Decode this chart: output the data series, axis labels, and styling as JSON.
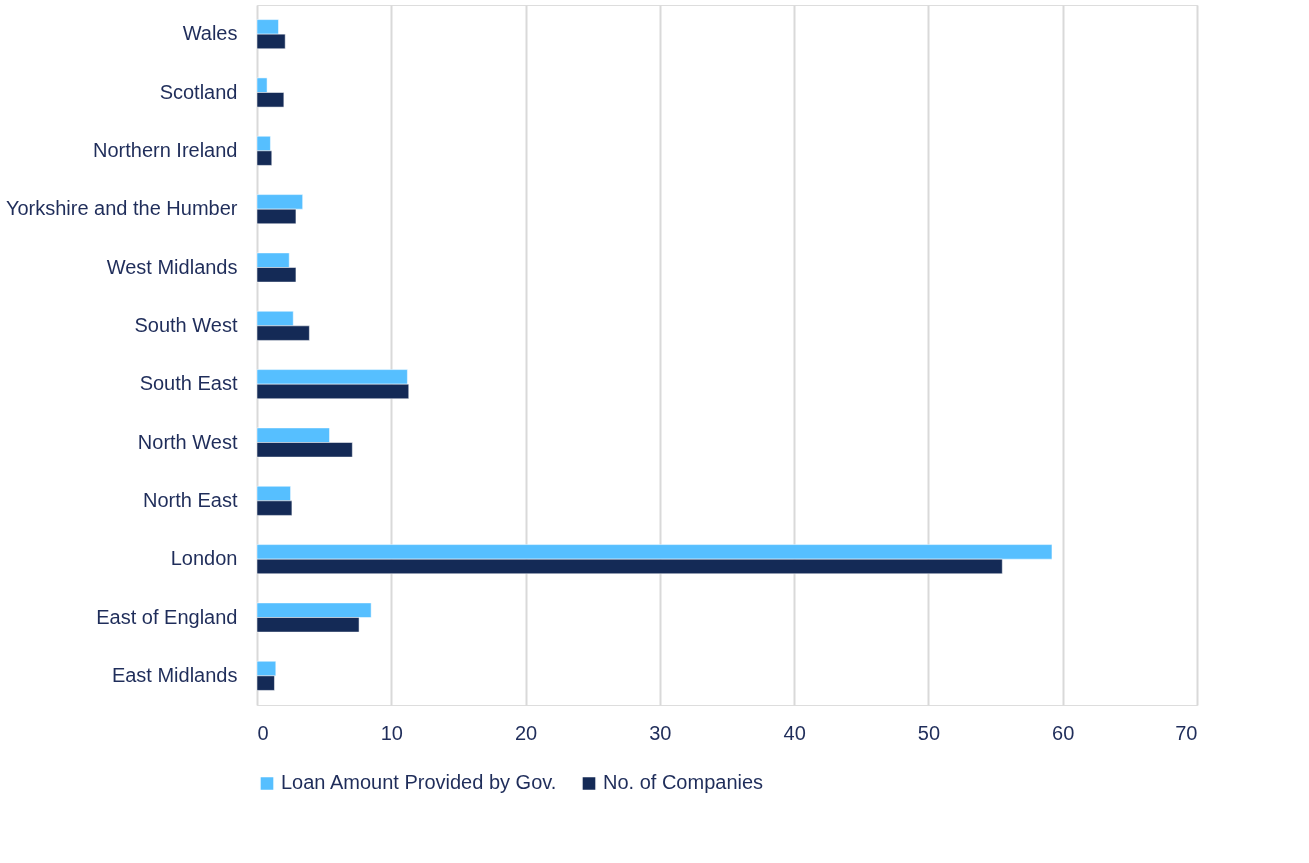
{
  "chart_data": {
    "type": "bar",
    "orientation": "horizontal",
    "categories": [
      "Wales",
      "Scotland",
      "Northern Ireland",
      "Yorkshire and the Humber",
      "West Midlands",
      "South West",
      "South East",
      "North West",
      "North East",
      "London",
      "East of England",
      "East Midlands"
    ],
    "series": [
      {
        "name": "Loan Amount Provided by Gov.",
        "color": "#56bfff",
        "values": [
          1.6,
          0.75,
          1.0,
          3.4,
          2.4,
          2.7,
          11.2,
          5.4,
          2.5,
          59.2,
          8.5,
          1.4
        ]
      },
      {
        "name": "No. of Companies",
        "color": "#142a56",
        "values": [
          2.1,
          2.0,
          1.1,
          2.9,
          2.9,
          3.9,
          11.3,
          7.1,
          2.6,
          55.5,
          7.6,
          1.3
        ]
      }
    ],
    "xlim": [
      0,
      70
    ],
    "xticks": [
      0,
      10,
      20,
      30,
      40,
      50,
      60,
      70
    ],
    "grid": "x",
    "legend": "bottom"
  }
}
